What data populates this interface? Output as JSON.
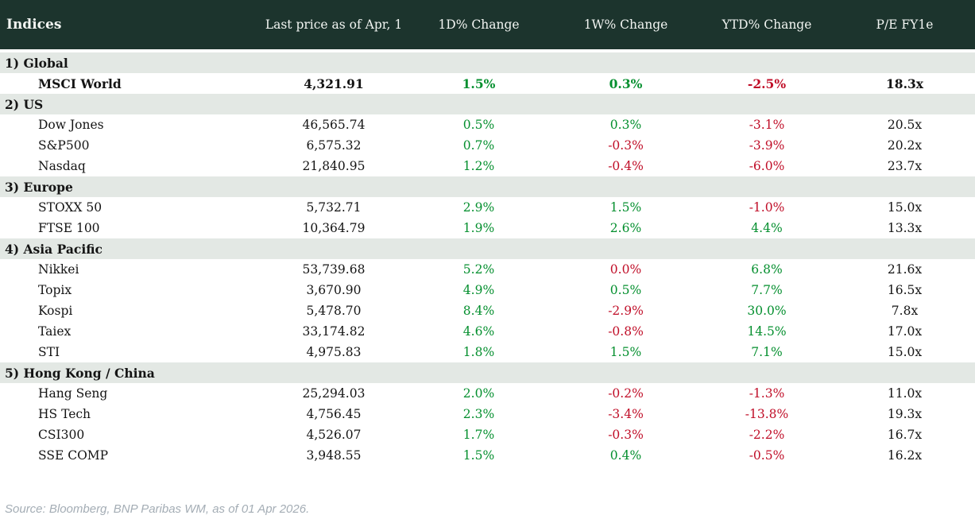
{
  "table": {
    "title": "Indices",
    "columns": [
      {
        "key": "last-price",
        "label": "Last price as of Apr, 1"
      },
      {
        "key": "1d-change",
        "label": "1D% Change"
      },
      {
        "key": "1w-change",
        "label": "1W% Change"
      },
      {
        "key": "ytd-change",
        "label": "YTD% Change"
      },
      {
        "key": "pe-fy1e",
        "label": "P/E FY1e"
      }
    ],
    "sections": [
      {
        "label": "1) Global",
        "rows": [
          {
            "name": "MSCI World",
            "price": "4,321.91",
            "d1": "1.5%",
            "d1_dir": "up",
            "w1": "0.3%",
            "w1_dir": "up",
            "ytd": "-2.5%",
            "ytd_dir": "down",
            "pe": "18.3x",
            "bold": true
          }
        ]
      },
      {
        "label": "2) US",
        "rows": [
          {
            "name": "Dow Jones",
            "price": "46,565.74",
            "d1": "0.5%",
            "d1_dir": "up",
            "w1": "0.3%",
            "w1_dir": "up",
            "ytd": "-3.1%",
            "ytd_dir": "down",
            "pe": "20.5x",
            "bold": false
          },
          {
            "name": "S&P500",
            "price": "6,575.32",
            "d1": "0.7%",
            "d1_dir": "up",
            "w1": "-0.3%",
            "w1_dir": "down",
            "ytd": "-3.9%",
            "ytd_dir": "down",
            "pe": "20.2x",
            "bold": false
          },
          {
            "name": "Nasdaq",
            "price": "21,840.95",
            "d1": "1.2%",
            "d1_dir": "up",
            "w1": "-0.4%",
            "w1_dir": "down",
            "ytd": "-6.0%",
            "ytd_dir": "down",
            "pe": "23.7x",
            "bold": false
          }
        ]
      },
      {
        "label": "3) Europe",
        "rows": [
          {
            "name": "STOXX 50",
            "price": "5,732.71",
            "d1": "2.9%",
            "d1_dir": "up",
            "w1": "1.5%",
            "w1_dir": "up",
            "ytd": "-1.0%",
            "ytd_dir": "down",
            "pe": "15.0x",
            "bold": false
          },
          {
            "name": "FTSE 100",
            "price": "10,364.79",
            "d1": "1.9%",
            "d1_dir": "up",
            "w1": "2.6%",
            "w1_dir": "up",
            "ytd": "4.4%",
            "ytd_dir": "up",
            "pe": "13.3x",
            "bold": false
          }
        ]
      },
      {
        "label": "4) Asia Pacific",
        "rows": [
          {
            "name": "Nikkei",
            "price": "53,739.68",
            "d1": "5.2%",
            "d1_dir": "up",
            "w1": "0.0%",
            "w1_dir": "down",
            "ytd": "6.8%",
            "ytd_dir": "up",
            "pe": "21.6x",
            "bold": false
          },
          {
            "name": "Topix",
            "price": "3,670.90",
            "d1": "4.9%",
            "d1_dir": "up",
            "w1": "0.5%",
            "w1_dir": "up",
            "ytd": "7.7%",
            "ytd_dir": "up",
            "pe": "16.5x",
            "bold": false
          },
          {
            "name": "Kospi",
            "price": "5,478.70",
            "d1": "8.4%",
            "d1_dir": "up",
            "w1": "-2.9%",
            "w1_dir": "down",
            "ytd": "30.0%",
            "ytd_dir": "up",
            "pe": "7.8x",
            "bold": false
          },
          {
            "name": "Taiex",
            "price": "33,174.82",
            "d1": "4.6%",
            "d1_dir": "up",
            "w1": "-0.8%",
            "w1_dir": "down",
            "ytd": "14.5%",
            "ytd_dir": "up",
            "pe": "17.0x",
            "bold": false
          },
          {
            "name": "STI",
            "price": "4,975.83",
            "d1": "1.8%",
            "d1_dir": "up",
            "w1": "1.5%",
            "w1_dir": "up",
            "ytd": "7.1%",
            "ytd_dir": "up",
            "pe": "15.0x",
            "bold": false
          }
        ]
      },
      {
        "label": "5) Hong Kong / China",
        "rows": [
          {
            "name": "Hang Seng",
            "price": "25,294.03",
            "d1": "2.0%",
            "d1_dir": "up",
            "w1": "-0.2%",
            "w1_dir": "down",
            "ytd": "-1.3%",
            "ytd_dir": "down",
            "pe": "11.0x",
            "bold": false
          },
          {
            "name": "HS Tech",
            "price": "4,756.45",
            "d1": "2.3%",
            "d1_dir": "up",
            "w1": "-3.4%",
            "w1_dir": "down",
            "ytd": "-13.8%",
            "ytd_dir": "down",
            "pe": "19.3x",
            "bold": false
          },
          {
            "name": "CSI300",
            "price": "4,526.07",
            "d1": "1.7%",
            "d1_dir": "up",
            "w1": "-0.3%",
            "w1_dir": "down",
            "ytd": "-2.2%",
            "ytd_dir": "down",
            "pe": "16.7x",
            "bold": false
          },
          {
            "name": "SSE COMP",
            "price": "3,948.55",
            "d1": "1.5%",
            "d1_dir": "up",
            "w1": "0.4%",
            "w1_dir": "up",
            "ytd": "-0.5%",
            "ytd_dir": "down",
            "pe": "16.2x",
            "bold": false
          }
        ]
      }
    ]
  },
  "source": "Source: Bloomberg, BNP Paribas WM, as of 01 Apr 2026.",
  "colors": {
    "header_bg": "#1c342d",
    "header_text": "#f2f5f2",
    "section_bg": "#e3e8e4",
    "positive": "#048f2e",
    "negative": "#c00e28",
    "source_text": "#a4adb5"
  }
}
